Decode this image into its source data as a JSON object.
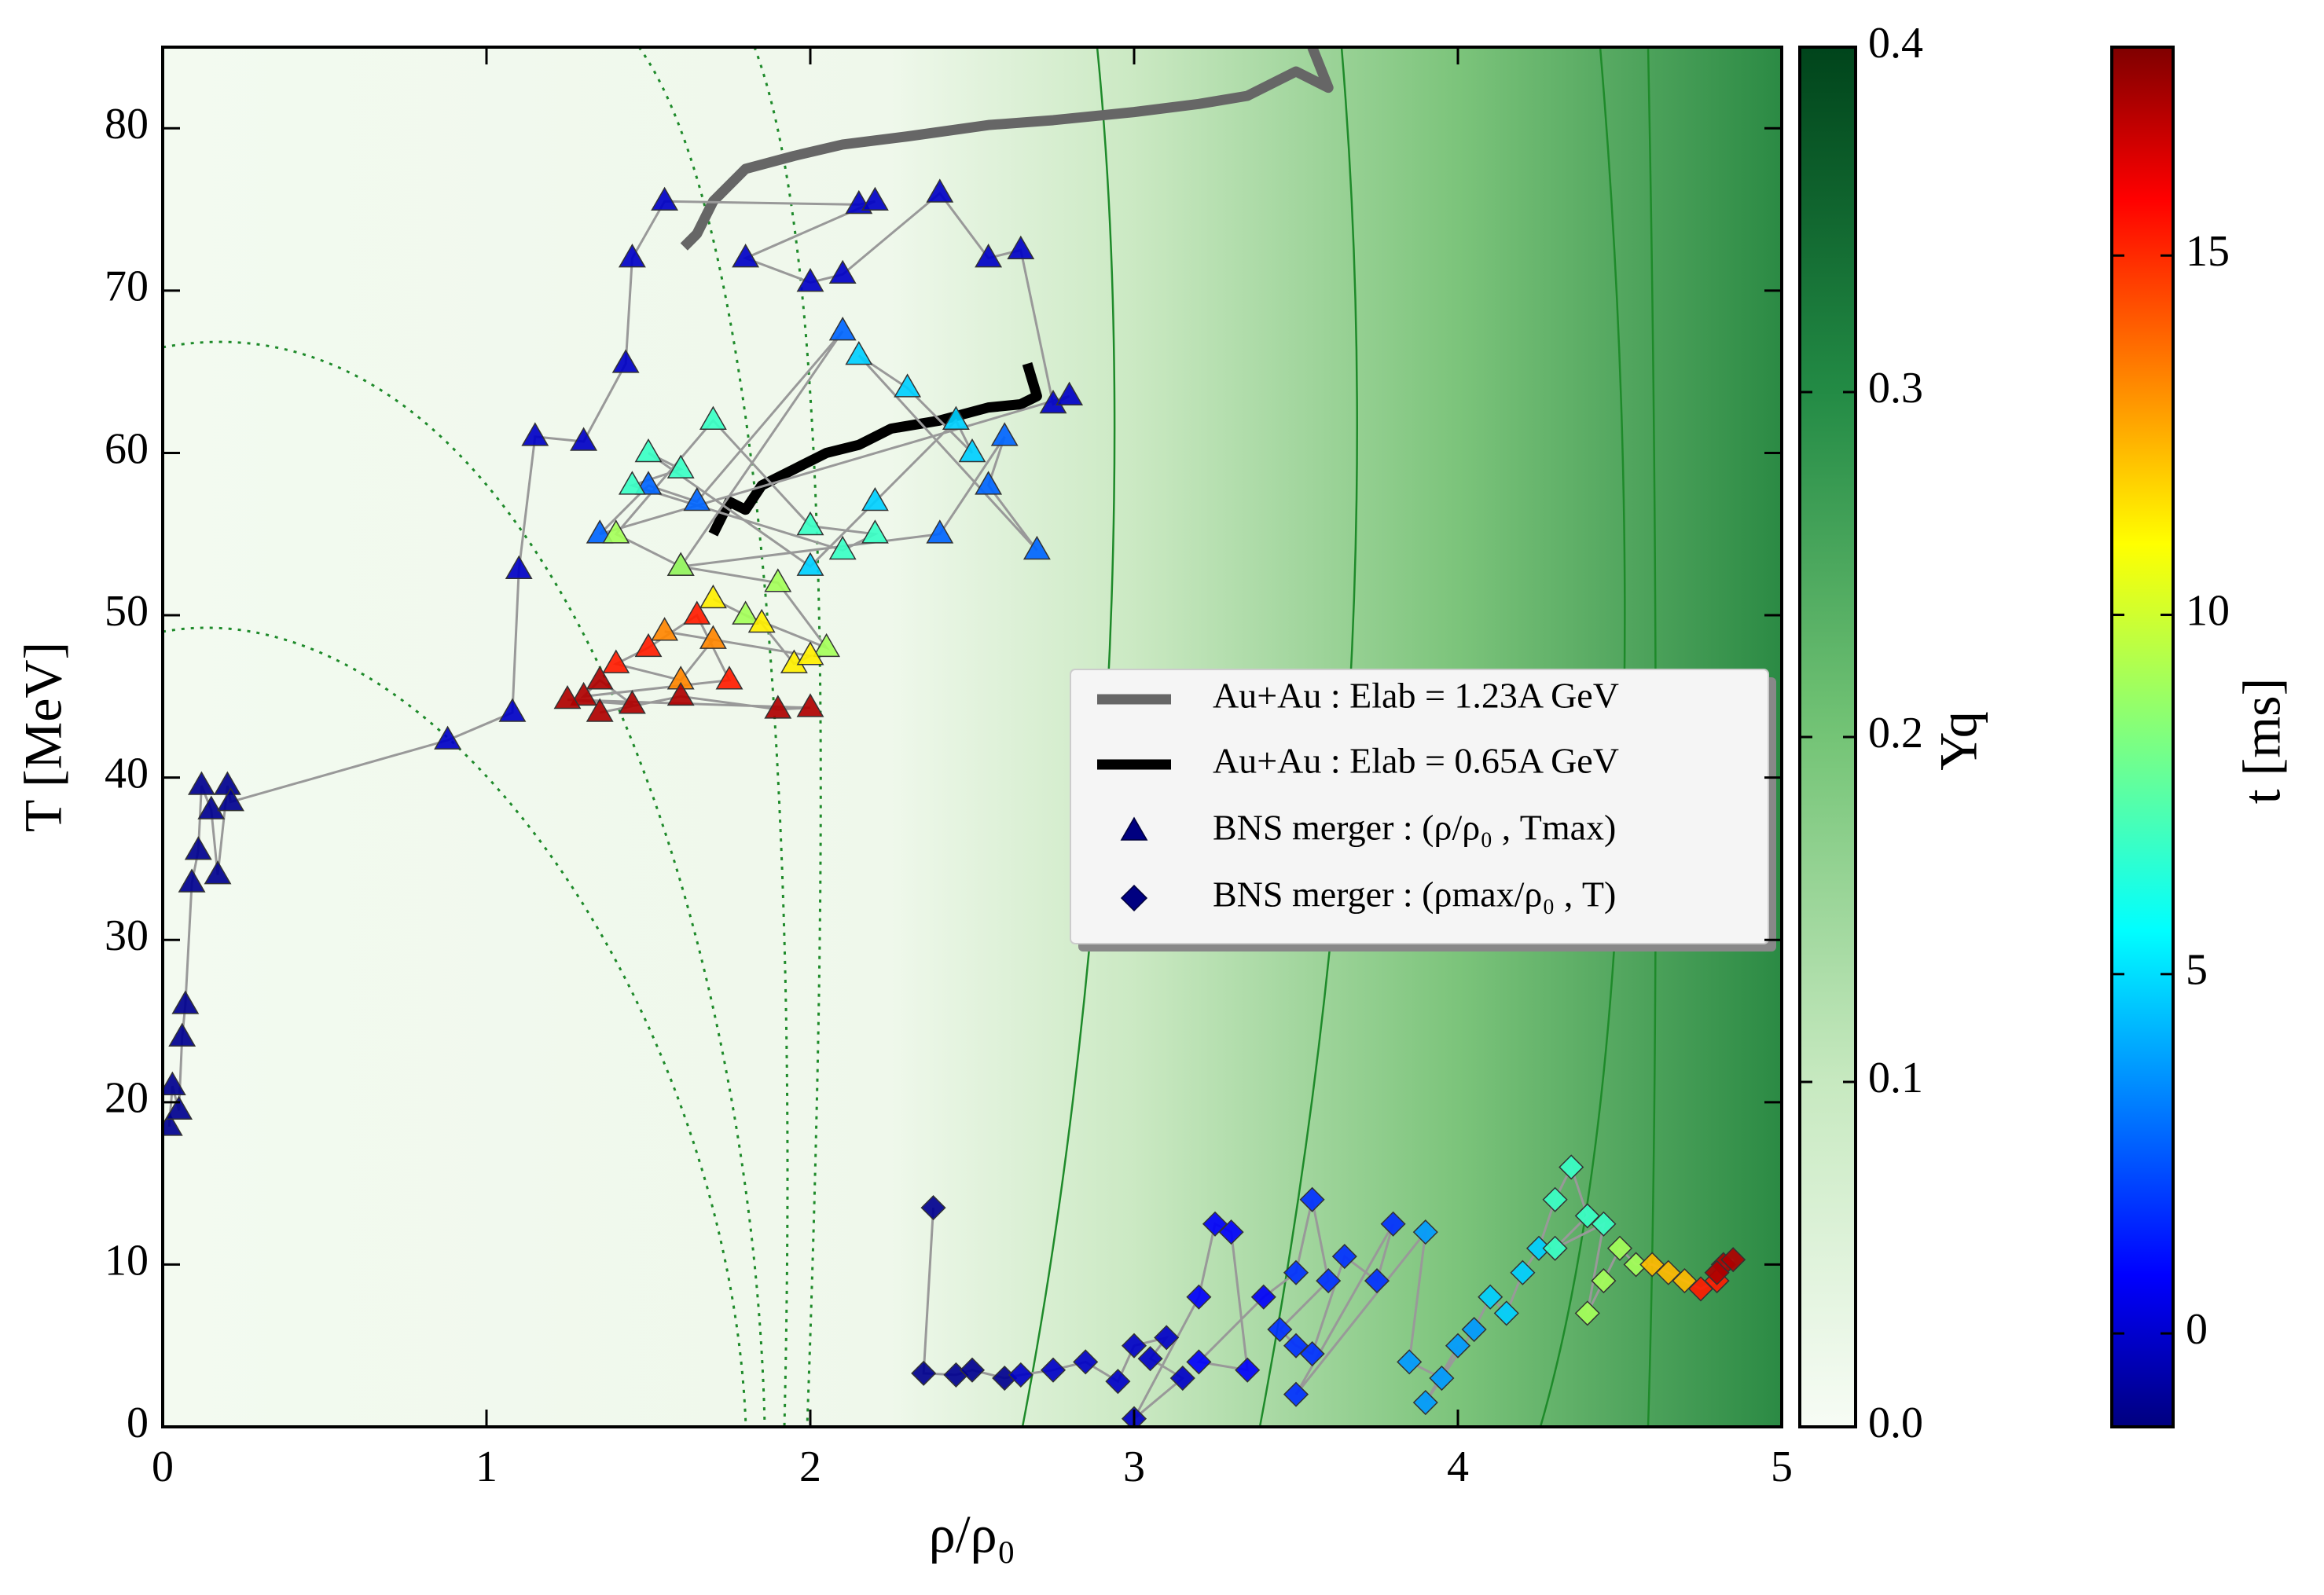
{
  "chart_data": {
    "type": "scatter",
    "xlabel": "ρ/ρ₀",
    "ylabel": "T [MeV]",
    "xlim": [
      0,
      5
    ],
    "ylim": [
      0,
      85
    ],
    "xticks": [
      0,
      1,
      2,
      3,
      4,
      5
    ],
    "yticks": [
      0,
      10,
      20,
      30,
      40,
      50,
      60,
      70,
      80
    ],
    "legend": "center right",
    "series": [
      {
        "name": "Au+Au : Elab = 1.23A GeV",
        "kind": "line",
        "color": "#666666",
        "x": [
          1.61,
          1.65,
          1.7,
          1.8,
          1.95,
          2.1,
          2.3,
          2.55,
          2.75,
          3.0,
          3.2,
          3.35,
          3.5,
          3.6,
          3.55
        ],
        "y": [
          72.7,
          73.5,
          75.5,
          77.5,
          78.3,
          79.0,
          79.5,
          80.2,
          80.5,
          81.0,
          81.5,
          82.0,
          83.5,
          82.5,
          85
        ]
      },
      {
        "name": "Au+Au : Elab = 0.65A GeV",
        "kind": "line",
        "color": "#000000",
        "x": [
          1.7,
          1.75,
          1.8,
          1.85,
          1.95,
          2.05,
          2.15,
          2.25,
          2.4,
          2.55,
          2.65,
          2.7,
          2.67
        ],
        "y": [
          55,
          57,
          56.5,
          58,
          59,
          60,
          60.5,
          61.5,
          62,
          62.8,
          63,
          63.5,
          65.5
        ]
      },
      {
        "name": "BNS merger : (ρ/ρ₀ , Tmax)",
        "kind": "markers",
        "marker": "triangle",
        "x": [
          0.02,
          0.03,
          0.05,
          0.06,
          0.07,
          0.09,
          0.11,
          0.12,
          0.15,
          0.17,
          0.2,
          0.21,
          0.88,
          1.08,
          1.1,
          1.15,
          1.3,
          1.43,
          1.45,
          1.55,
          2.15,
          2.2,
          1.8,
          2.0,
          2.1,
          2.4,
          2.55,
          2.65,
          2.75,
          2.8,
          1.35,
          1.5,
          1.65,
          2.1,
          1.6,
          2.4,
          2.6,
          2.55,
          2.7,
          2.15,
          2.3,
          2.5,
          2.45,
          2.2,
          2.0,
          1.5,
          1.6,
          1.45,
          2.1,
          2.2,
          2.0,
          1.7,
          1.4,
          1.6,
          1.9,
          2.05,
          1.8,
          1.7,
          1.85,
          1.95,
          2.0,
          1.55,
          1.7,
          1.6,
          1.4,
          1.5,
          1.65,
          1.75,
          1.3,
          1.35,
          1.45,
          1.25,
          2.0,
          1.9,
          1.6,
          1.35
        ],
        "y": [
          18.5,
          21,
          19.5,
          24,
          26,
          33.5,
          35.5,
          39.5,
          38,
          34,
          39.5,
          38.5,
          42.3,
          44,
          52.8,
          61,
          60.7,
          65.5,
          72,
          75.5,
          75.3,
          75.5,
          72,
          70.5,
          71,
          76,
          72,
          72.5,
          63,
          63.5,
          55,
          58,
          57,
          67.5,
          53,
          55,
          61,
          58,
          54,
          66,
          64,
          60,
          62,
          57,
          53,
          60,
          59,
          58,
          54,
          55,
          55.5,
          62,
          55,
          53,
          52,
          48,
          50,
          51,
          49.5,
          47,
          47.5,
          49,
          48.5,
          46,
          47,
          48,
          50,
          46,
          45,
          46,
          44.5,
          44.8,
          44.3,
          44.2,
          45,
          44
        ],
        "t": [
          -1,
          -1,
          -1,
          -1,
          -1,
          -1,
          -1,
          -1,
          -1,
          -1,
          -1,
          -1,
          0,
          0,
          0,
          0,
          0,
          0,
          0,
          0,
          0,
          0,
          0,
          0,
          0,
          0,
          0,
          0,
          0,
          0,
          3,
          3,
          3,
          3,
          3,
          3,
          3,
          3,
          3,
          5,
          5,
          5,
          5,
          5,
          5,
          7,
          7,
          7,
          7,
          7,
          7,
          7,
          9,
          9,
          9,
          9,
          9,
          11,
          11,
          11,
          11,
          13,
          13,
          13,
          15,
          15,
          15,
          15,
          17,
          17,
          17,
          17,
          17,
          17,
          17,
          17
        ]
      },
      {
        "name": "BNS merger : (ρmax/ρ₀ , T)",
        "kind": "markers",
        "marker": "diamond",
        "x": [
          2.38,
          2.35,
          2.45,
          2.5,
          2.6,
          2.65,
          2.75,
          2.85,
          2.95,
          3.0,
          3.1,
          3.05,
          3.15,
          3.0,
          3.2,
          3.25,
          3.3,
          3.35,
          3.2,
          3.4,
          3.5,
          3.55,
          3.6,
          3.45,
          3.5,
          3.55,
          3.65,
          3.75,
          3.8,
          3.5,
          3.9,
          3.85,
          3.95,
          4.0,
          3.9,
          4.05,
          4.1,
          4.15,
          4.2,
          4.25,
          4.3,
          4.35,
          4.4,
          4.3,
          4.45,
          4.4,
          4.45,
          4.5,
          4.55,
          4.6,
          4.65,
          4.7,
          4.75,
          4.8,
          4.82,
          4.85,
          4.8
        ],
        "y": [
          13.5,
          3.3,
          3.2,
          3.5,
          3.0,
          3.2,
          3.5,
          4.0,
          2.8,
          5.0,
          5.5,
          4.2,
          3.0,
          0.5,
          8.0,
          12.5,
          12.0,
          3.5,
          4.0,
          8.0,
          9.5,
          14,
          9.0,
          6.0,
          5.0,
          4.5,
          10.5,
          9.0,
          12.5,
          2.0,
          12,
          4,
          3,
          5,
          1.5,
          6,
          8,
          7,
          9.5,
          11,
          14,
          16,
          13,
          11,
          12.5,
          7,
          9,
          11,
          10,
          10,
          9.5,
          9,
          8.5,
          9,
          10,
          10.3,
          9.5
        ],
        "t": [
          -1,
          -1,
          -1,
          -1,
          -1,
          0,
          0,
          0,
          0,
          0,
          0,
          0,
          0,
          0,
          1,
          1,
          1,
          1,
          1,
          1,
          2,
          2,
          2,
          2,
          2,
          2,
          2,
          2,
          2,
          2,
          4,
          4,
          4,
          4,
          4,
          4,
          5,
          5,
          5,
          5,
          7,
          7,
          7,
          7,
          7,
          9,
          9,
          9,
          9,
          12,
          12,
          12,
          15,
          15,
          17,
          17,
          17
        ]
      }
    ],
    "colorbars": [
      {
        "label": "Yq",
        "colormap": "Greens",
        "lim": [
          0,
          0.4
        ],
        "ticks": [
          {
            "value": 0,
            "label": "0.0"
          },
          0.1,
          0.2,
          0.3,
          0.4
        ]
      },
      {
        "label": "t [ms]",
        "colormap": "jet",
        "lim": [
          -1.3,
          17.9
        ],
        "ticks": [
          0,
          5,
          10,
          15
        ]
      }
    ]
  }
}
